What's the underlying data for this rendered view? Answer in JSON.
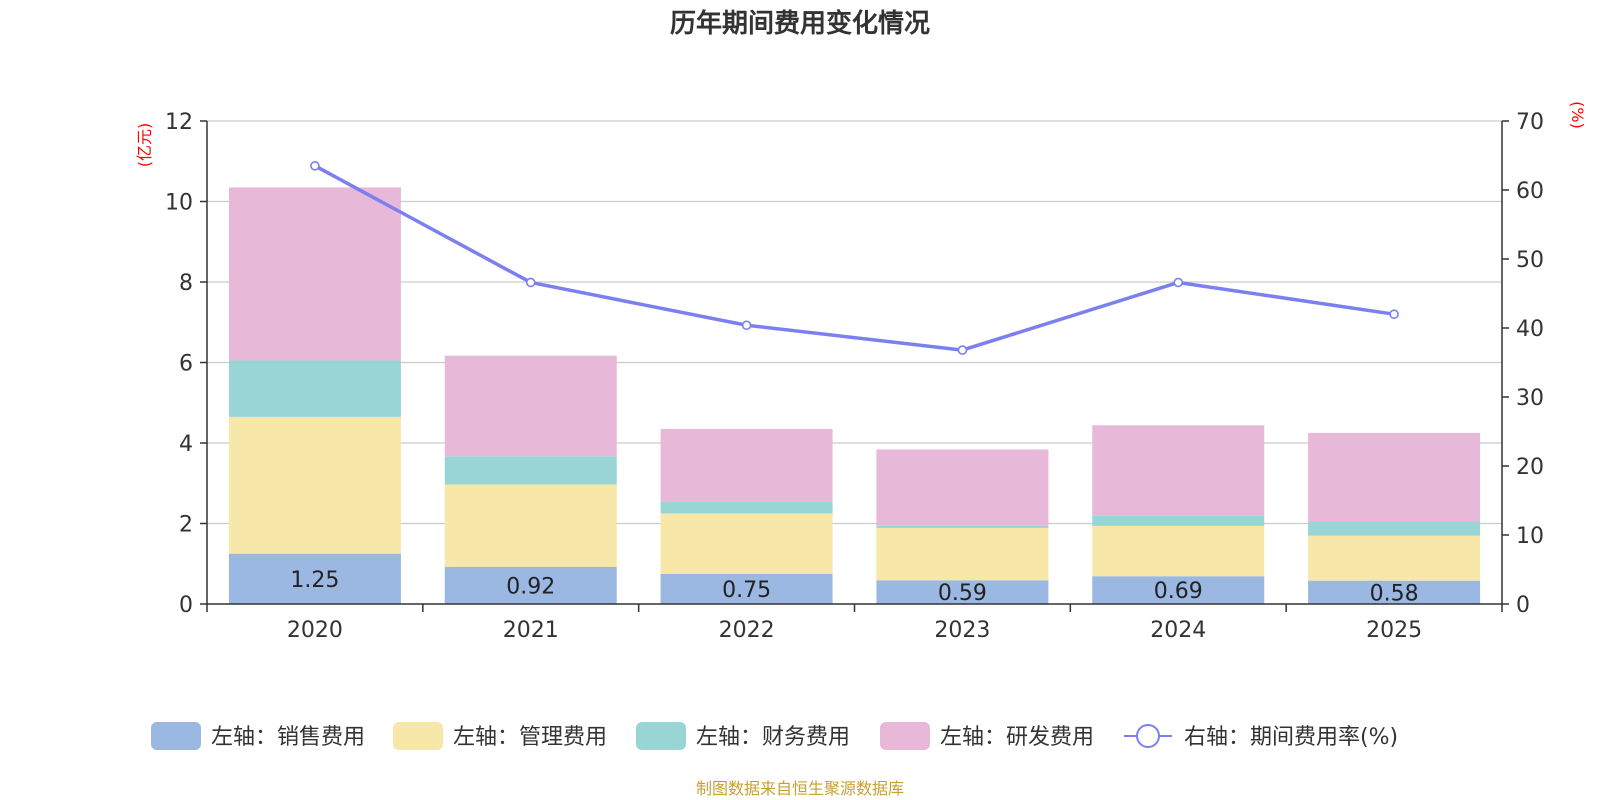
{
  "chart_data": {
    "type": "bar",
    "stacked": true,
    "title": "历年期间费用变化情况",
    "categories": [
      "2020",
      "2021",
      "2022",
      "2023",
      "2024",
      "2025"
    ],
    "left_axis": {
      "unit": "(亿元)",
      "ylim": [
        0,
        12
      ],
      "ticks": [
        0,
        2,
        4,
        6,
        8,
        10,
        12
      ]
    },
    "right_axis": {
      "unit": "(%)",
      "ylim": [
        0,
        70
      ],
      "ticks": [
        0,
        10,
        20,
        30,
        40,
        50,
        60,
        70
      ]
    },
    "series": [
      {
        "name": "左轴：销售费用",
        "axis": "left",
        "color": "#9bb8e2",
        "values": [
          1.25,
          0.92,
          0.75,
          0.59,
          0.69,
          0.58
        ],
        "labels": [
          "1.25",
          "0.92",
          "0.75",
          "0.59",
          "0.69",
          "0.58"
        ]
      },
      {
        "name": "左轴：管理费用",
        "axis": "left",
        "color": "#f7e7a8",
        "values": [
          3.4,
          2.05,
          1.5,
          1.3,
          1.25,
          1.12
        ]
      },
      {
        "name": "左轴：财务费用",
        "axis": "left",
        "color": "#99d5d5",
        "values": [
          1.4,
          0.7,
          0.3,
          0.05,
          0.25,
          0.35
        ]
      },
      {
        "name": "左轴：研发费用",
        "axis": "left",
        "color": "#e7b8d8",
        "values": [
          4.3,
          2.5,
          1.8,
          1.9,
          2.25,
          2.2
        ]
      },
      {
        "name": "右轴：期间费用率(%)",
        "axis": "right",
        "type": "line",
        "color": "#7b7ff0",
        "values": [
          63.5,
          46.6,
          40.4,
          36.8,
          46.6,
          42.0
        ]
      }
    ],
    "source": "制图数据来自恒生聚源数据库"
  }
}
